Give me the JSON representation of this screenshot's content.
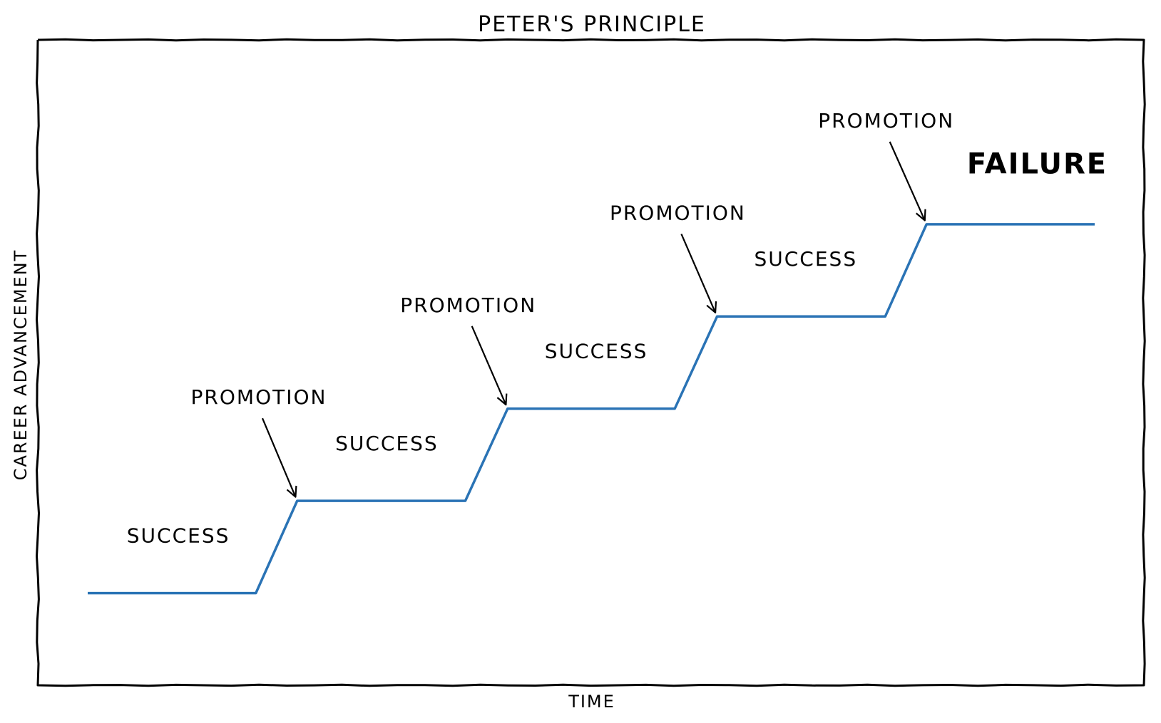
{
  "chart_data": {
    "type": "line",
    "title": "PETER'S PRINCIPLE",
    "xlabel": "TIME",
    "ylabel": "CAREER ADVANCEMENT",
    "xlim": [
      0,
      100
    ],
    "ylim": [
      0,
      7
    ],
    "grid": false,
    "ticks": "none",
    "series": [
      {
        "color": "#2a73b5",
        "x": [
          0,
          16.7,
          20.8,
          37.5,
          41.7,
          58.3,
          62.5,
          79.2,
          83.3,
          100
        ],
        "y": [
          1,
          1,
          2,
          2,
          3,
          3,
          4,
          4,
          5,
          5
        ]
      }
    ],
    "annotations": [
      {
        "text": "SUCCESS",
        "x": 9,
        "y": 1.55,
        "color": "#000000"
      },
      {
        "text": "SUCCESS",
        "x": 29.7,
        "y": 2.55,
        "color": "#000000"
      },
      {
        "text": "SUCCESS",
        "x": 50.5,
        "y": 3.55,
        "color": "#000000"
      },
      {
        "text": "SUCCESS",
        "x": 71.3,
        "y": 4.55,
        "color": "#000000"
      },
      {
        "text": "PROMOTION",
        "x": 17,
        "y": 3.05,
        "arrow_to": [
          20.8,
          2
        ],
        "color": "#000000"
      },
      {
        "text": "PROMOTION",
        "x": 37.8,
        "y": 4.05,
        "arrow_to": [
          41.7,
          3
        ],
        "color": "#000000"
      },
      {
        "text": "PROMOTION",
        "x": 58.6,
        "y": 5.05,
        "arrow_to": [
          62.5,
          4
        ],
        "color": "#000000"
      },
      {
        "text": "PROMOTION",
        "x": 79.3,
        "y": 6.05,
        "arrow_to": [
          83.3,
          5
        ],
        "color": "#000000"
      },
      {
        "text": "FAILURE",
        "x": 94.3,
        "y": 5.55,
        "color": "#ee1111"
      }
    ]
  }
}
